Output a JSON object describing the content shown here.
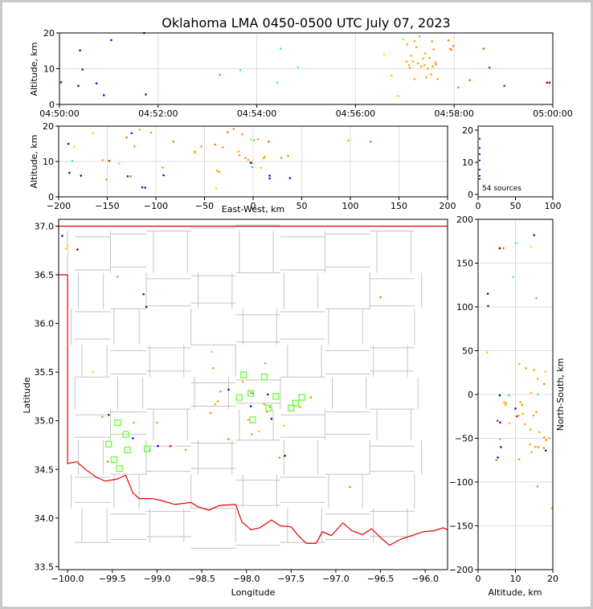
{
  "title": "Oklahoma LMA 0450-0500 UTC July 07, 2023",
  "source_count_label": "54 sources",
  "colors": {
    "state_border": "#e00000",
    "county": "#c4c4c4",
    "station": "#66ff33",
    "grid": "#dcdcdc"
  },
  "chart_data": [
    {
      "id": "time_altitude",
      "type": "scatter",
      "ylabel": "Altitude, km",
      "xlabel": "",
      "xlim": [
        "04:50:00",
        "05:00:00"
      ],
      "ylim": [
        0,
        20
      ],
      "xticks": [
        "04:50:00",
        "04:52:00",
        "04:54:00",
        "04:56:00",
        "04:58:00",
        "05:00:00"
      ],
      "yticks": [
        "0",
        "10",
        "20"
      ],
      "points": [
        [
          "04:50:02",
          6.2,
          "#1010c0"
        ],
        [
          "04:50:23",
          5.2,
          "#1010c0"
        ],
        [
          "04:50:25",
          15.1,
          "#1010c0"
        ],
        [
          "04:50:28",
          9.8,
          "#1010c0"
        ],
        [
          "04:50:45",
          5.9,
          "#1010c0"
        ],
        [
          "04:50:54",
          2.6,
          "#1010c0"
        ],
        [
          "04:51:03",
          18.0,
          "#1010c0"
        ],
        [
          "04:51:45",
          2.8,
          "#1010c0"
        ],
        [
          "04:51:43",
          20.0,
          "#1010c0"
        ],
        [
          "04:53:15",
          8.3,
          "#22cccc"
        ],
        [
          "04:53:40",
          9.6,
          "#22ffaa"
        ],
        [
          "04:54:25",
          6.1,
          "#33eeff"
        ],
        [
          "04:54:29",
          15.6,
          "#33ffaa"
        ],
        [
          "04:54:50",
          10.4,
          "#66ff88"
        ],
        [
          "04:56:35",
          14.0,
          "#ffdd00"
        ],
        [
          "04:56:44",
          8.1,
          "#ffcc00"
        ],
        [
          "04:56:52",
          2.4,
          "#ffcc00"
        ],
        [
          "04:56:58",
          18.2,
          "#ffcc00"
        ],
        [
          "04:57:02",
          12.0,
          "#ffaa00"
        ],
        [
          "04:57:03",
          16.8,
          "#ffaa00"
        ],
        [
          "04:57:05",
          11.0,
          "#ffaa00"
        ],
        [
          "04:57:06",
          10.2,
          "#ffaa00"
        ],
        [
          "04:57:08",
          13.6,
          "#ffaa00"
        ],
        [
          "04:57:10",
          12.0,
          "#ffaa00"
        ],
        [
          "04:57:12",
          7.1,
          "#ffaa00"
        ],
        [
          "04:57:12",
          17.7,
          "#ffaa00"
        ],
        [
          "04:57:14",
          16.0,
          "#ffaa00"
        ],
        [
          "04:57:16",
          11.5,
          "#ffaa00"
        ],
        [
          "04:57:18",
          19.0,
          "#ffaa00"
        ],
        [
          "04:57:20",
          10.6,
          "#ffaa00"
        ],
        [
          "04:57:22",
          12.8,
          "#ffaa00"
        ],
        [
          "04:57:24",
          11.0,
          "#ffaa00"
        ],
        [
          "04:57:25",
          14.3,
          "#ff9900"
        ],
        [
          "04:57:26",
          7.6,
          "#ff9900"
        ],
        [
          "04:57:28",
          10.0,
          "#ff9900"
        ],
        [
          "04:57:30",
          13.0,
          "#ff9900"
        ],
        [
          "04:57:32",
          8.4,
          "#ff9900"
        ],
        [
          "04:57:33",
          17.6,
          "#ff9900"
        ],
        [
          "04:57:34",
          10.6,
          "#ff9900"
        ],
        [
          "04:57:35",
          15.4,
          "#ff9900"
        ],
        [
          "04:57:37",
          11.8,
          "#ff9900"
        ],
        [
          "04:57:38",
          11.2,
          "#ff9900"
        ],
        [
          "04:57:40",
          7.1,
          "#ff9900"
        ],
        [
          "04:57:53",
          17.9,
          "#ff8800"
        ],
        [
          "04:57:55",
          15.5,
          "#ff8800"
        ],
        [
          "04:57:57",
          15.3,
          "#ff8800"
        ],
        [
          "04:57:59",
          16.4,
          "#ff8800"
        ],
        [
          "04:58:05",
          4.8,
          "#ff7700"
        ],
        [
          "04:58:19",
          6.8,
          "#ff6600"
        ],
        [
          "04:58:36",
          15.6,
          "#ff5500"
        ],
        [
          "04:58:43",
          10.3,
          "#dd2200"
        ],
        [
          "04:59:01",
          5.2,
          "#bb1100"
        ],
        [
          "04:59:53",
          6.1,
          "#aa0000"
        ],
        [
          "04:59:56",
          6.1,
          "#aa0000"
        ]
      ]
    },
    {
      "id": "ew_altitude",
      "type": "scatter",
      "xlabel": "East-West, km",
      "ylabel": "Altitude, km",
      "xlim": [
        -200,
        200
      ],
      "ylim": [
        0,
        20
      ],
      "xticks": [
        "−200",
        "−150",
        "−100",
        "−50",
        "0",
        "50",
        "100",
        "150",
        "200"
      ],
      "yticks": [
        "0",
        "10",
        "20"
      ],
      "points": [
        [
          -190,
          15.0,
          "#1010c0"
        ],
        [
          -189,
          6.8,
          "#1010c0"
        ],
        [
          -186,
          10.2,
          "#22ffaa"
        ],
        [
          -184,
          14.2,
          "#ffdd00"
        ],
        [
          -177,
          6.0,
          "#660000"
        ],
        [
          -165,
          18.0,
          "#ffcc00"
        ],
        [
          -155,
          10.4,
          "#ffaa00"
        ],
        [
          -151,
          4.9,
          "#ff9900"
        ],
        [
          -148,
          10.2,
          "#dd2200"
        ],
        [
          -138,
          9.4,
          "#33eeff"
        ],
        [
          -130,
          16.8,
          "#ff7700"
        ],
        [
          -129,
          5.8,
          "#aa0000"
        ],
        [
          -126,
          5.8,
          "#22cc66"
        ],
        [
          -125,
          18.0,
          "#1010c0"
        ],
        [
          -122,
          14.3,
          "#ff9900"
        ],
        [
          -117,
          19.0,
          "#ffaa00"
        ],
        [
          -114,
          2.7,
          "#1010c0"
        ],
        [
          -111,
          2.6,
          "#1010c0"
        ],
        [
          -105,
          18.2,
          "#ffaa00"
        ],
        [
          -93,
          8.3,
          "#ff9900"
        ],
        [
          -92,
          6.1,
          "#1010c0"
        ],
        [
          -82,
          15.6,
          "#ff8800"
        ],
        [
          -60,
          12.9,
          "#ffaa00"
        ],
        [
          -60,
          12.5,
          "#ffaa00"
        ],
        [
          -53,
          14.2,
          "#ff9900"
        ],
        [
          -39,
          14.8,
          "#ff8800"
        ],
        [
          -38,
          2.4,
          "#ffcc00"
        ],
        [
          -37,
          7.4,
          "#ffaa00"
        ],
        [
          -35,
          7.1,
          "#ff9900"
        ],
        [
          -31,
          14.0,
          "#ff9900"
        ],
        [
          -26,
          18.3,
          "#ff7700"
        ],
        [
          -20,
          19.2,
          "#ff8800"
        ],
        [
          -15,
          12.8,
          "#ffaa00"
        ],
        [
          -14,
          11.8,
          "#ff9900"
        ],
        [
          -11,
          17.7,
          "#ff9900"
        ],
        [
          -8,
          11.0,
          "#ff9900"
        ],
        [
          -5,
          10.5,
          "#ffaa00"
        ],
        [
          -3,
          9.8,
          "#ff9900"
        ],
        [
          -2,
          16.2,
          "#ffcc00"
        ],
        [
          -2,
          9.6,
          "#1010c0"
        ],
        [
          -1,
          8.4,
          "#22ccff"
        ],
        [
          1,
          16.0,
          "#33ffaa"
        ],
        [
          5,
          16.3,
          "#ffaa00"
        ],
        [
          8,
          8.2,
          "#ffcc00"
        ],
        [
          11,
          11.0,
          "#ff9900"
        ],
        [
          12,
          11.3,
          "#ffaa00"
        ],
        [
          16,
          15.6,
          "#ff5500"
        ],
        [
          17,
          5.2,
          "#1010c0"
        ],
        [
          17,
          6.0,
          "#1010c0"
        ],
        [
          29,
          11.0,
          "#ff9900"
        ],
        [
          36,
          11.6,
          "#ff8800"
        ],
        [
          38,
          5.3,
          "#1010c0"
        ],
        [
          98,
          15.9,
          "#ffaa00"
        ],
        [
          121,
          15.6,
          "#ff7700"
        ]
      ]
    },
    {
      "id": "histogram",
      "type": "scatter",
      "xlim": [
        0,
        100
      ],
      "ylim": [
        0,
        20
      ],
      "xticks": [
        "0",
        "50",
        "100"
      ],
      "yticks": [
        "0",
        "10",
        "20"
      ],
      "points": [
        [
          0,
          18,
          "#1010c0"
        ],
        [
          0,
          15,
          "#1010c0"
        ],
        [
          0,
          13,
          "#1010c0"
        ],
        [
          0,
          11,
          "#1010c0"
        ],
        [
          0,
          8,
          "#1010c0"
        ],
        [
          0,
          6,
          "#1010c0"
        ],
        [
          0,
          5,
          "#1010c0"
        ]
      ]
    },
    {
      "id": "plan_view",
      "type": "scatter",
      "xlabel": "Longitude",
      "ylabel": "Latitude",
      "xlim": [
        -100.1,
        -95.75
      ],
      "ylim": [
        33.47,
        37.07
      ],
      "xticks": [
        "−100.0",
        "−99.5",
        "−99.0",
        "−98.5",
        "−98.0",
        "−97.5",
        "−97.0",
        "−96.5",
        "−96.0"
      ],
      "yticks": [
        "33.5",
        "34.0",
        "34.5",
        "35.0",
        "35.5",
        "36.0",
        "36.5",
        "37.0"
      ],
      "points": [
        [
          -100.06,
          36.9,
          "#1010c0"
        ],
        [
          -100.02,
          36.77,
          "#ffcc00"
        ],
        [
          -100.0,
          36.8,
          "#ffdd00"
        ],
        [
          -99.89,
          36.76,
          "#660000"
        ],
        [
          -99.44,
          36.48,
          "#22ccff"
        ],
        [
          -99.15,
          36.3,
          "#1010c0"
        ],
        [
          -99.12,
          36.17,
          "#1010c0"
        ],
        [
          -99.72,
          35.5,
          "#ffcc00"
        ],
        [
          -99.54,
          35.06,
          "#aa0000"
        ],
        [
          -99.61,
          35.04,
          "#ff8800"
        ],
        [
          -99.26,
          34.98,
          "#ff9900"
        ],
        [
          -99.08,
          34.7,
          "#22ffaa"
        ],
        [
          -99.27,
          34.82,
          "#1010c0"
        ],
        [
          -99.55,
          34.58,
          "#ff7700"
        ],
        [
          -99.0,
          34.98,
          "#ff9900"
        ],
        [
          -98.99,
          34.74,
          "#1010c0"
        ],
        [
          -98.85,
          34.74,
          "#dd2200"
        ],
        [
          -98.39,
          35.71,
          "#ffcc00"
        ],
        [
          -98.37,
          35.54,
          "#ff9900"
        ],
        [
          -98.4,
          35.08,
          "#ff8800"
        ],
        [
          -98.32,
          35.2,
          "#ff9900"
        ],
        [
          -98.29,
          35.3,
          "#ff8800"
        ],
        [
          -98.2,
          35.32,
          "#1010c0"
        ],
        [
          -98.2,
          34.81,
          "#ff7700"
        ],
        [
          -98.35,
          35.17,
          "#ffaa00"
        ],
        [
          -98.04,
          35.4,
          "#ffaa00"
        ],
        [
          -97.98,
          35.01,
          "#ffaa00"
        ],
        [
          -97.95,
          35.29,
          "#ff9900"
        ],
        [
          -97.95,
          35.15,
          "#1010c0"
        ],
        [
          -97.93,
          35.28,
          "#22ccff"
        ],
        [
          -97.94,
          34.86,
          "#ff9900"
        ],
        [
          -97.86,
          34.89,
          "#ffcc00"
        ],
        [
          -97.8,
          35.17,
          "#ff9900"
        ],
        [
          -97.79,
          35.59,
          "#ffaa00"
        ],
        [
          -97.76,
          35.27,
          "#1010c0"
        ],
        [
          -97.74,
          35.14,
          "#ff9900"
        ],
        [
          -97.77,
          35.09,
          "#ffaa00"
        ],
        [
          -97.72,
          35.02,
          "#1010c0"
        ],
        [
          -97.63,
          34.62,
          "#ff8800"
        ],
        [
          -97.58,
          34.95,
          "#ffcc00"
        ],
        [
          -97.57,
          34.64,
          "#1010c0"
        ],
        [
          -97.28,
          35.24,
          "#ff8800"
        ],
        [
          -96.84,
          34.32,
          "#ff8800"
        ],
        [
          -96.5,
          36.27,
          "#ff7700"
        ],
        [
          -98.68,
          34.7,
          "#ff9900"
        ],
        [
          -97.4,
          35.14,
          "#ffaa00"
        ]
      ],
      "stations": [
        [
          -99.44,
          34.98
        ],
        [
          -99.54,
          34.76
        ],
        [
          -99.48,
          34.6
        ],
        [
          -99.42,
          34.51
        ],
        [
          -99.35,
          34.86
        ],
        [
          -99.33,
          34.7
        ],
        [
          -99.11,
          34.71
        ],
        [
          -98.03,
          35.47
        ],
        [
          -98.08,
          35.24
        ],
        [
          -97.95,
          35.28
        ],
        [
          -97.93,
          35.01
        ],
        [
          -97.8,
          35.45
        ],
        [
          -97.75,
          35.13
        ],
        [
          -97.67,
          35.25
        ],
        [
          -97.5,
          35.13
        ],
        [
          -97.45,
          35.18
        ],
        [
          -97.38,
          35.24
        ]
      ]
    },
    {
      "id": "ns_altitude",
      "type": "scatter",
      "xlabel": "Altitude, km",
      "ylabel": "North-South, km",
      "xlim": [
        0,
        20
      ],
      "ylim": [
        -200,
        200
      ],
      "xticks": [
        "0",
        "10",
        "20"
      ],
      "yticks": [
        "−200",
        "−150",
        "−100",
        "−50",
        "0",
        "50",
        "100",
        "150",
        "200"
      ],
      "points": [
        [
          15.0,
          182,
          "#1010c0"
        ],
        [
          5.8,
          167,
          "#660000"
        ],
        [
          6.8,
          167,
          "#ff7700"
        ],
        [
          10.2,
          173,
          "#22ffaa"
        ],
        [
          14.2,
          169,
          "#ffdd00"
        ],
        [
          9.4,
          134,
          "#33eeff"
        ],
        [
          2.6,
          115,
          "#1010c0"
        ],
        [
          2.7,
          101,
          "#1010c0"
        ],
        [
          15.6,
          110,
          "#ff9900"
        ],
        [
          2.4,
          48,
          "#ffcc00"
        ],
        [
          11.0,
          35,
          "#ffaa00"
        ],
        [
          12.8,
          30,
          "#ff9900"
        ],
        [
          15.0,
          28,
          "#ff9900"
        ],
        [
          18.0,
          26,
          "#ffcc00"
        ],
        [
          16.0,
          18,
          "#ffaa00"
        ],
        [
          17.7,
          12,
          "#ff8800"
        ],
        [
          14.2,
          2,
          "#ffaa00"
        ],
        [
          16.0,
          0,
          "#33ffaa"
        ],
        [
          8.3,
          -1,
          "#22ccff"
        ],
        [
          5.8,
          -1,
          "#1010c0"
        ],
        [
          7.0,
          -9,
          "#ff9900"
        ],
        [
          7.3,
          -12,
          "#ffaa00"
        ],
        [
          7.6,
          -10,
          "#ffaa00"
        ],
        [
          11.3,
          -9,
          "#ff9900"
        ],
        [
          11.8,
          -12,
          "#ff9900"
        ],
        [
          10.0,
          -16,
          "#1010c0"
        ],
        [
          10.4,
          -25,
          "#dd2200"
        ],
        [
          10.8,
          -24,
          "#ff9900"
        ],
        [
          12.0,
          -22,
          "#ffaa00"
        ],
        [
          14.8,
          -24,
          "#ffaa00"
        ],
        [
          15.6,
          -20,
          "#ff8800"
        ],
        [
          5.2,
          -30,
          "#dd2200"
        ],
        [
          5.9,
          -32,
          "#1010c0"
        ],
        [
          8.4,
          -33,
          "#ffcc00"
        ],
        [
          12.5,
          -34,
          "#ffaa00"
        ],
        [
          14.0,
          -40,
          "#ff9900"
        ],
        [
          16.4,
          -43,
          "#ffaa00"
        ],
        [
          5.9,
          -51,
          "#22ffaa"
        ],
        [
          17.7,
          -49,
          "#ff9900"
        ],
        [
          18.2,
          -52,
          "#ff8800"
        ],
        [
          19.0,
          -50,
          "#ffaa00"
        ],
        [
          13.9,
          -57,
          "#ffaa00"
        ],
        [
          15.4,
          -60,
          "#ff9900"
        ],
        [
          6.1,
          -60,
          "#1010c0"
        ],
        [
          16.2,
          -60,
          "#ff9900"
        ],
        [
          17.6,
          -61,
          "#ff8800"
        ],
        [
          18.1,
          -64,
          "#1010c0"
        ],
        [
          14.3,
          -66,
          "#ffaa00"
        ],
        [
          4.9,
          -75,
          "#ff7700"
        ],
        [
          5.3,
          -72,
          "#1010c0"
        ],
        [
          11.0,
          -74,
          "#ff9900"
        ],
        [
          15.9,
          -105,
          "#ff8800"
        ],
        [
          19.8,
          -130,
          "#ff9900"
        ]
      ]
    }
  ]
}
